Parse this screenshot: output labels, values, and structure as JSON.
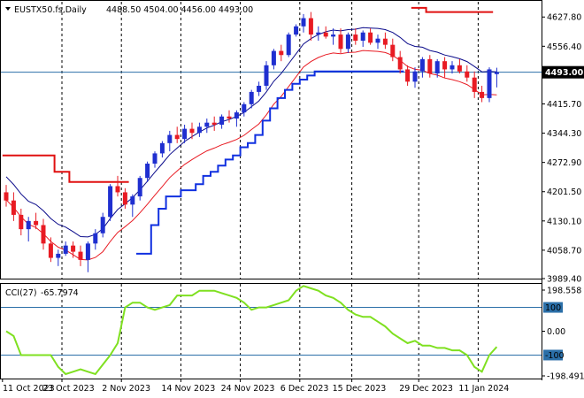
{
  "header": {
    "symbol_tf": "EUSTX50.fs,Daily",
    "ohlc": "4488.50 4504.00 4456.00 4493.00"
  },
  "cci_header": {
    "label": "CCI(27)",
    "value": "-65.7974"
  },
  "current_price_label": "4493.00",
  "colors": {
    "bull_candle": "#1f2fd0",
    "bear_candle": "#e81b23",
    "upper_band": "#0a0a8a",
    "lower_band": "#e81b23",
    "trail_support": "#1030e0",
    "trail_resistance": "#e01010",
    "cci_line": "#7fe020",
    "cci_level": "#2b6fa8",
    "grid_vertical": "#000000",
    "current_price_line": "#2b6fa8"
  },
  "chart_data": [
    {
      "type": "candlestick",
      "title": "EUSTX50.fs,Daily",
      "y_ticks": [
        "4627.80",
        "4556.40",
        "4487.00",
        "4415.70",
        "4344.30",
        "4272.90",
        "4201.50",
        "4130.10",
        "4058.70",
        "3989.40"
      ],
      "y_range": [
        3989.4,
        4665
      ],
      "x_tick_labels": [
        "11 Oct 2023",
        "23 Oct 2023",
        "2 Nov 2023",
        "14 Nov 2023",
        "24 Nov 2023",
        "6 Dec 2023",
        "15 Dec 2023",
        "29 Dec 2023",
        "11 Jan 2024"
      ],
      "x_tick_index": [
        0,
        8,
        16,
        24,
        32,
        40,
        47,
        56,
        64
      ],
      "current_price": 4493,
      "ohlc": [
        [
          4200,
          4218,
          4165,
          4180
        ],
        [
          4180,
          4200,
          4130,
          4145
        ],
        [
          4145,
          4160,
          4095,
          4110
        ],
        [
          4110,
          4140,
          4080,
          4130
        ],
        [
          4130,
          4150,
          4110,
          4120
        ],
        [
          4120,
          4135,
          4060,
          4075
        ],
        [
          4075,
          4090,
          4030,
          4040
        ],
        [
          4040,
          4060,
          4020,
          4050
        ],
        [
          4050,
          4080,
          4045,
          4070
        ],
        [
          4070,
          4080,
          4040,
          4055
        ],
        [
          4055,
          4070,
          4020,
          4035
        ],
        [
          4035,
          4080,
          4005,
          4075
        ],
        [
          4075,
          4110,
          4060,
          4100
        ],
        [
          4100,
          4150,
          4090,
          4140
        ],
        [
          4140,
          4220,
          4130,
          4215
        ],
        [
          4215,
          4240,
          4190,
          4200
        ],
        [
          4200,
          4210,
          4160,
          4170
        ],
        [
          4170,
          4195,
          4140,
          4190
        ],
        [
          4190,
          4240,
          4180,
          4235
        ],
        [
          4235,
          4275,
          4225,
          4270
        ],
        [
          4270,
          4300,
          4260,
          4295
        ],
        [
          4295,
          4325,
          4285,
          4320
        ],
        [
          4320,
          4350,
          4300,
          4340
        ],
        [
          4340,
          4360,
          4320,
          4330
        ],
        [
          4330,
          4365,
          4320,
          4355
        ],
        [
          4355,
          4370,
          4330,
          4345
        ],
        [
          4345,
          4370,
          4335,
          4360
        ],
        [
          4360,
          4380,
          4345,
          4370
        ],
        [
          4370,
          4385,
          4350,
          4365
        ],
        [
          4365,
          4390,
          4355,
          4385
        ],
        [
          4385,
          4400,
          4370,
          4380
        ],
        [
          4380,
          4400,
          4360,
          4395
        ],
        [
          4395,
          4420,
          4385,
          4415
        ],
        [
          4415,
          4450,
          4405,
          4445
        ],
        [
          4445,
          4470,
          4435,
          4460
        ],
        [
          4460,
          4520,
          4450,
          4510
        ],
        [
          4510,
          4550,
          4500,
          4545
        ],
        [
          4545,
          4560,
          4520,
          4535
        ],
        [
          4535,
          4590,
          4530,
          4585
        ],
        [
          4585,
          4610,
          4580,
          4605
        ],
        [
          4605,
          4635,
          4590,
          4625
        ],
        [
          4625,
          4640,
          4570,
          4585
        ],
        [
          4585,
          4605,
          4570,
          4590
        ],
        [
          4590,
          4605,
          4575,
          4580
        ],
        [
          4580,
          4600,
          4560,
          4585
        ],
        [
          4585,
          4600,
          4540,
          4550
        ],
        [
          4550,
          4590,
          4540,
          4585
        ],
        [
          4585,
          4600,
          4560,
          4570
        ],
        [
          4570,
          4595,
          4555,
          4590
        ],
        [
          4590,
          4600,
          4560,
          4565
        ],
        [
          4565,
          4585,
          4550,
          4575
        ],
        [
          4575,
          4590,
          4550,
          4560
        ],
        [
          4560,
          4575,
          4520,
          4530
        ],
        [
          4530,
          4545,
          4490,
          4500
        ],
        [
          4500,
          4510,
          4460,
          4470
        ],
        [
          4470,
          4505,
          4455,
          4495
        ],
        [
          4495,
          4530,
          4480,
          4525
        ],
        [
          4525,
          4535,
          4480,
          4490
        ],
        [
          4490,
          4525,
          4480,
          4520
        ],
        [
          4520,
          4530,
          4480,
          4500
        ],
        [
          4500,
          4520,
          4490,
          4510
        ],
        [
          4510,
          4525,
          4490,
          4495
        ],
        [
          4495,
          4510,
          4470,
          4480
        ],
        [
          4480,
          4495,
          4430,
          4445
        ],
        [
          4445,
          4460,
          4420,
          4430
        ],
        [
          4430,
          4505,
          4420,
          4500
        ],
        [
          4488.5,
          4504,
          4456,
          4493
        ]
      ],
      "series": [
        {
          "name": "upper_band",
          "values": [
            4238,
            4219,
            4196,
            4178,
            4170,
            4155,
            4136,
            4122,
            4115,
            4104,
            4092,
            4091,
            4097,
            4111,
            4136,
            4158,
            4172,
            4187,
            4206,
            4227,
            4249,
            4270,
            4292,
            4308,
            4324,
            4336,
            4347,
            4357,
            4364,
            4372,
            4378,
            4385,
            4395,
            4409,
            4423,
            4445,
            4471,
            4490,
            4514,
            4538,
            4562,
            4575,
            4585,
            4592,
            4596,
            4594,
            4597,
            4598,
            4602,
            4601,
            4600,
            4597,
            4590,
            4578,
            4563,
            4556,
            4554,
            4546,
            4542,
            4535,
            4531,
            4526,
            4519,
            4507,
            4494,
            4495,
            4494
          ]
        },
        {
          "name": "lower_band",
          "values": [
            4182,
            4163,
            4140,
            4122,
            4114,
            4099,
            4080,
            4066,
            4059,
            4048,
            4036,
            4035,
            4041,
            4055,
            4080,
            4102,
            4116,
            4131,
            4150,
            4171,
            4193,
            4214,
            4236,
            4252,
            4268,
            4280,
            4291,
            4301,
            4308,
            4316,
            4322,
            4329,
            4339,
            4353,
            4367,
            4389,
            4415,
            4434,
            4458,
            4482,
            4506,
            4519,
            4529,
            4536,
            4540,
            4538,
            4541,
            4542,
            4546,
            4545,
            4544,
            4541,
            4534,
            4522,
            4507,
            4500,
            4498,
            4490,
            4486,
            4479,
            4475,
            4470,
            4463,
            4451,
            4438,
            4439,
            4438
          ]
        },
        {
          "name": "trail_resistance",
          "values": [
            4290,
            4290,
            4290,
            4290,
            4290,
            4290,
            4290,
            4250,
            4250,
            4225,
            4225,
            4225,
            4225,
            4225,
            4225,
            4225,
            4225,
            4225,
            null,
            null,
            null,
            null,
            null,
            null,
            null,
            null,
            null,
            null,
            null,
            null,
            null,
            null,
            null,
            null,
            null,
            null,
            null,
            null,
            null,
            null,
            null,
            null,
            null,
            null,
            null,
            null,
            null,
            null,
            null,
            null,
            null,
            null,
            null,
            null,
            null,
            4650,
            4650,
            4640,
            4640,
            4640,
            4640,
            4640,
            4640,
            4640,
            4640,
            4640,
            4640
          ]
        },
        {
          "name": "trail_support",
          "values": [
            null,
            null,
            null,
            null,
            null,
            null,
            null,
            null,
            null,
            null,
            null,
            null,
            null,
            null,
            null,
            null,
            null,
            null,
            4050,
            4050,
            4120,
            4160,
            4190,
            4190,
            4205,
            4205,
            4220,
            4240,
            4250,
            4265,
            4280,
            4290,
            4310,
            4320,
            4340,
            4375,
            4405,
            4430,
            4450,
            4465,
            4475,
            4485,
            4495,
            4495,
            4495,
            4495,
            4495,
            4495,
            4495,
            4495,
            4495,
            4495,
            4495,
            4495,
            4495,
            null,
            null,
            null,
            null,
            null,
            null,
            null,
            null,
            null,
            null,
            null,
            null
          ]
        }
      ]
    },
    {
      "type": "line",
      "title": "CCI(27) -65.7974",
      "y_ticks": [
        "198.558",
        "100",
        "0.00",
        "-100",
        "-198.4915"
      ],
      "y_range": [
        -198.4915,
        198.558
      ],
      "levels": [
        100,
        -100
      ],
      "series": [
        {
          "name": "CCI(27)",
          "values": [
            0,
            -20,
            -100,
            -100,
            -100,
            -100,
            -100,
            -150,
            -180,
            -170,
            -160,
            -170,
            -180,
            -140,
            -100,
            -50,
            100,
            120,
            120,
            100,
            90,
            100,
            110,
            150,
            150,
            150,
            170,
            170,
            170,
            160,
            150,
            140,
            120,
            90,
            100,
            100,
            110,
            120,
            130,
            170,
            190,
            180,
            170,
            150,
            140,
            120,
            90,
            70,
            60,
            60,
            40,
            20,
            -10,
            -30,
            -50,
            -40,
            -60,
            -60,
            -70,
            -70,
            -80,
            -80,
            -100,
            -150,
            -170,
            -100,
            -65.7974
          ]
        }
      ]
    }
  ]
}
